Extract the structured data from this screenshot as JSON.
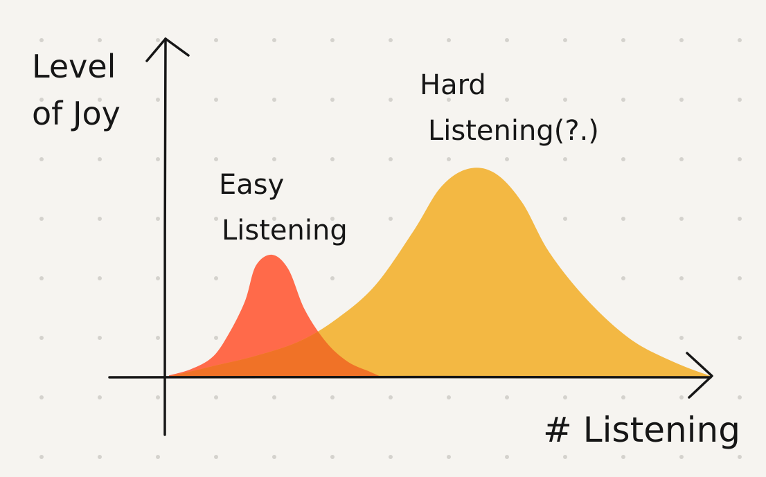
{
  "chart_data": {
    "type": "area",
    "title": "",
    "ylabel_lines": [
      "Level",
      "of Joy"
    ],
    "xlabel": "# Listening",
    "grid": "dotted background",
    "series": [
      {
        "label_lines": [
          "Easy",
          "Listening"
        ],
        "color": "#ff6a4a",
        "shape": "narrow peak",
        "x": [
          0,
          0.04,
          0.08,
          0.11,
          0.14,
          0.16,
          0.19,
          0.22,
          0.25,
          0.29,
          0.33,
          0.37,
          0.39
        ],
        "y": [
          0.01,
          0.06,
          0.16,
          0.35,
          0.62,
          0.91,
          1.0,
          0.88,
          0.55,
          0.28,
          0.12,
          0.04,
          0.0
        ]
      },
      {
        "label_lines": [
          "Hard",
          "Listening(?.)"
        ],
        "color": "#f3b843",
        "shape": "broad peak",
        "x": [
          0,
          0.08,
          0.16,
          0.24,
          0.31,
          0.38,
          0.45,
          0.5,
          0.55,
          0.6,
          0.65,
          0.7,
          0.77,
          0.85,
          0.93,
          1.0
        ],
        "y": [
          0.0,
          0.05,
          0.1,
          0.17,
          0.28,
          0.44,
          0.7,
          0.91,
          1.0,
          0.98,
          0.84,
          0.6,
          0.37,
          0.18,
          0.07,
          0.0
        ]
      }
    ]
  },
  "colors": {
    "background": "#f6f4f0",
    "ink": "#161616",
    "grid_dot": "#d4d2cd",
    "overlap": "#f07227"
  }
}
